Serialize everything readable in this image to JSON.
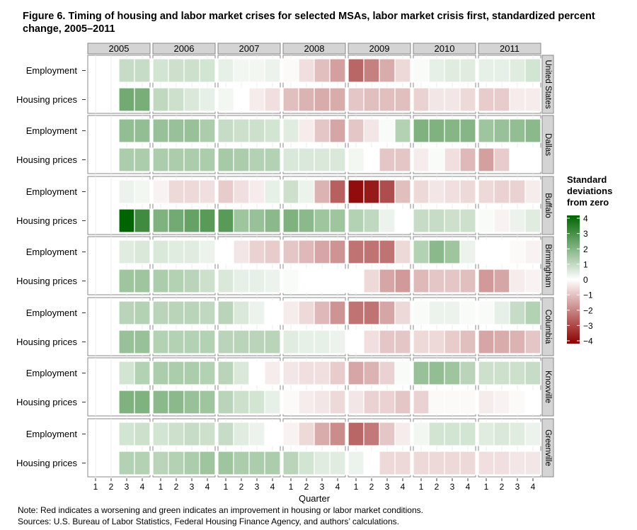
{
  "title": "Figure 6. Timing of housing and labor market crises for selected MSAs, labor market crisis first, standardized percent change, 2005–2011",
  "notes": [
    "Note:  Red indicates a worsening and green indicates an improvement in housing or labor market conditions.",
    "Sources:  U.S. Bureau of Labor Statistics, Federal Housing Finance Agency, and authors’ calculations."
  ],
  "chart_data": {
    "type": "heatmap",
    "title": "Figure 6. Timing of housing and labor market crises for selected MSAs, labor market crisis first, standardized percent change, 2005–2011",
    "xlabel": "Quarter",
    "years": [
      "2005",
      "2006",
      "2007",
      "2008",
      "2009",
      "2010",
      "2011"
    ],
    "quarters": [
      "1",
      "2",
      "3",
      "4"
    ],
    "row_labels": [
      "Employment",
      "Housing prices"
    ],
    "colors": {
      "low": "#8b0000",
      "mid": "#ffffff",
      "high": "#006400",
      "empty": "#ffffff"
    },
    "legend": {
      "title": "Standard deviations from zero",
      "title_lines": [
        "Standard",
        "deviations",
        "from zero"
      ],
      "ticks": [
        "4",
        "3",
        "2",
        "1",
        "0",
        "−1",
        "−2",
        "−3",
        "−4"
      ],
      "range": [
        -4,
        4
      ],
      "position": "right"
    },
    "panels": [
      {
        "name": "United States",
        "Employment": [
          null,
          null,
          0.9,
          0.9,
          0.7,
          0.8,
          0.8,
          0.7,
          0.4,
          0.2,
          0.2,
          0.3,
          -0.1,
          -0.5,
          -1.0,
          -1.5,
          -2.4,
          -2.0,
          -1.3,
          -0.6,
          0.1,
          0.4,
          0.5,
          0.5,
          0.4,
          0.4,
          0.5,
          0.7
        ],
        "Housing prices": [
          null,
          null,
          2.2,
          2.1,
          1.0,
          0.8,
          0.6,
          0.4,
          0.2,
          0.0,
          -0.3,
          -0.5,
          -1.0,
          -1.2,
          -1.3,
          -1.3,
          -0.9,
          -1.0,
          -1.0,
          -1.0,
          -0.7,
          -0.4,
          -0.4,
          -0.6,
          -0.8,
          -0.8,
          -0.3,
          -0.3
        ]
      },
      {
        "name": "Dallas",
        "Employment": [
          null,
          null,
          1.7,
          1.7,
          1.6,
          1.6,
          1.6,
          1.3,
          0.9,
          0.8,
          0.8,
          0.7,
          0.5,
          -0.3,
          -0.9,
          -1.4,
          -0.9,
          -0.4,
          0.1,
          1.2,
          2.0,
          2.0,
          1.9,
          1.9,
          1.5,
          1.6,
          1.7,
          1.8
        ],
        "Housing prices": [
          null,
          null,
          1.3,
          1.3,
          1.3,
          1.3,
          1.3,
          1.3,
          1.4,
          1.3,
          1.2,
          1.2,
          0.6,
          0.6,
          0.6,
          0.6,
          0.2,
          0.0,
          -0.9,
          -0.9,
          -0.3,
          0.1,
          -0.5,
          -1.1,
          -1.5,
          -0.8,
          0.0,
          0.0
        ]
      },
      {
        "name": "Buffalo",
        "Employment": [
          null,
          null,
          0.3,
          0.2,
          -0.2,
          -0.6,
          -0.6,
          -0.5,
          -0.8,
          -0.5,
          -0.3,
          0.4,
          0.8,
          0.3,
          -1.2,
          -2.5,
          -3.8,
          -3.6,
          -2.8,
          -1.0,
          -0.6,
          -0.4,
          -0.5,
          -0.6,
          -0.6,
          -0.7,
          -0.7,
          -0.3
        ],
        "Housing prices": [
          null,
          null,
          4.0,
          3.0,
          2.0,
          2.2,
          2.4,
          2.6,
          2.6,
          1.5,
          1.6,
          1.8,
          2.0,
          1.8,
          1.5,
          1.5,
          1.2,
          1.0,
          0.3,
          0.0,
          0.9,
          0.9,
          0.8,
          0.8,
          0.1,
          -0.2,
          0.3,
          0.5
        ]
      },
      {
        "name": "Birmingham",
        "Employment": [
          null,
          null,
          0.5,
          0.6,
          0.6,
          0.5,
          0.5,
          0.3,
          0.0,
          -0.4,
          -0.7,
          -0.8,
          -0.9,
          -1.1,
          -1.4,
          -1.7,
          -2.2,
          -2.2,
          -2.2,
          -0.6,
          1.2,
          1.8,
          1.5,
          0.3,
          0.0,
          0.0,
          -0.1,
          -0.2
        ],
        "Housing prices": [
          null,
          null,
          1.5,
          1.5,
          1.3,
          1.2,
          1.1,
          0.8,
          0.6,
          0.4,
          0.4,
          0.3,
          0.1,
          0.0,
          0.0,
          0.0,
          0.0,
          -0.6,
          -1.4,
          -1.6,
          -1.1,
          -0.9,
          -0.9,
          -1.0,
          -1.6,
          -1.4,
          -0.3,
          -0.2
        ]
      },
      {
        "name": "Columbia",
        "Employment": [
          null,
          null,
          1.1,
          1.2,
          1.1,
          1.1,
          1.1,
          1.0,
          1.1,
          0.6,
          0.3,
          0.0,
          -0.3,
          -0.6,
          -1.1,
          -1.7,
          -2.2,
          -2.2,
          -1.4,
          -0.6,
          0.1,
          0.3,
          0.3,
          0.1,
          0.1,
          0.4,
          0.9,
          1.2
        ],
        "Housing prices": [
          null,
          null,
          1.6,
          1.6,
          1.2,
          1.2,
          1.2,
          1.2,
          1.1,
          1.1,
          1.1,
          1.1,
          0.5,
          0.4,
          0.4,
          0.3,
          0.0,
          -0.5,
          -0.9,
          -0.9,
          -0.6,
          -0.6,
          -0.8,
          -1.0,
          -1.4,
          -1.3,
          -1.2,
          -0.9
        ]
      },
      {
        "name": "Knoxville",
        "Employment": [
          null,
          null,
          0.7,
          1.2,
          1.3,
          1.3,
          1.3,
          1.2,
          1.1,
          0.6,
          0.0,
          -0.3,
          -0.4,
          -0.5,
          -0.5,
          -0.8,
          -1.4,
          -1.2,
          -0.7,
          0.1,
          1.6,
          1.7,
          1.5,
          1.1,
          0.8,
          0.8,
          0.8,
          0.9
        ],
        "Housing prices": [
          null,
          null,
          2.0,
          2.0,
          1.8,
          1.8,
          1.6,
          1.5,
          1.1,
          0.8,
          0.7,
          0.4,
          -0.1,
          -0.3,
          -0.4,
          -0.6,
          -0.4,
          -0.7,
          -0.7,
          -0.9,
          -0.7,
          -0.1,
          -0.1,
          -0.1,
          -0.3,
          -0.2,
          -0.1,
          0.0
        ]
      },
      {
        "name": "Greenville",
        "Employment": [
          null,
          null,
          0.7,
          0.8,
          0.7,
          0.8,
          0.9,
          0.8,
          0.9,
          0.5,
          0.3,
          0.0,
          -0.2,
          -0.6,
          -1.3,
          -1.8,
          -2.4,
          -2.1,
          -0.9,
          -0.3,
          0.2,
          0.7,
          0.7,
          0.7,
          0.5,
          0.6,
          0.5,
          0.3
        ],
        "Housing prices": [
          null,
          null,
          1.2,
          1.2,
          1.1,
          1.2,
          1.3,
          1.5,
          1.5,
          1.3,
          1.3,
          1.3,
          1.1,
          0.7,
          0.5,
          0.5,
          0.3,
          0.0,
          -0.6,
          -0.6,
          -0.6,
          -0.6,
          -0.6,
          -0.6,
          -0.5,
          -0.5,
          -0.4,
          -0.4
        ]
      }
    ]
  }
}
